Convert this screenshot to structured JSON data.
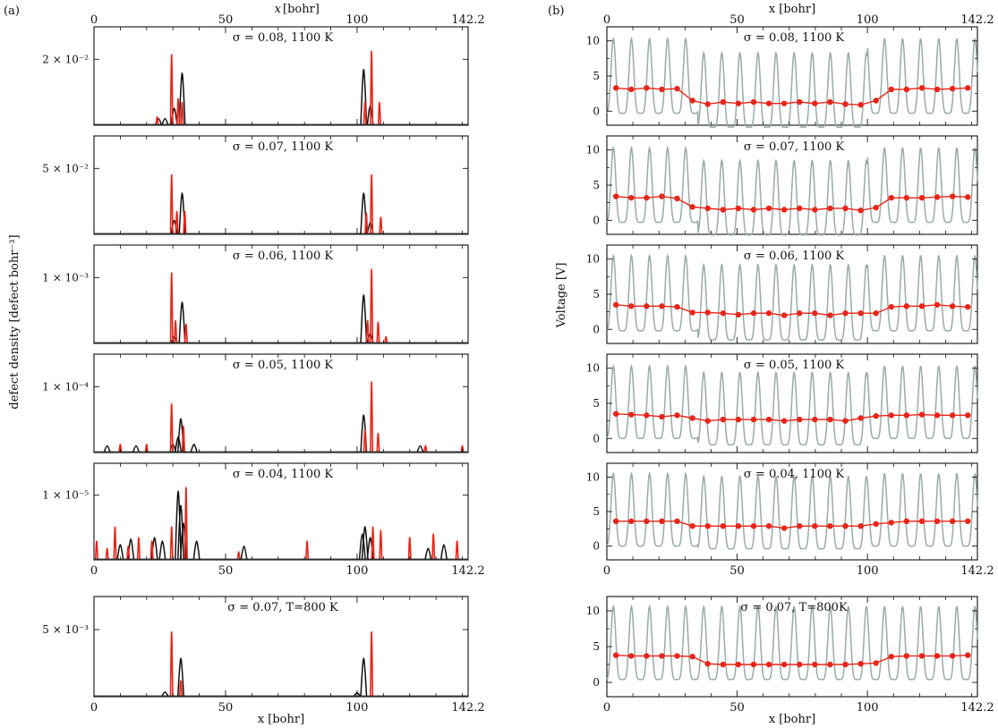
{
  "figure": {
    "left_tag": "(a)",
    "right_tag": "(b)",
    "left_ylabel": "defect density [defect bohr⁻³]",
    "right_ylabel": "Voltage [V]",
    "xlabel": "x [bohr]"
  },
  "chart_data": [
    {
      "type": "line",
      "panel": "a",
      "xlim": [
        0,
        142.2
      ],
      "x_ticks": [
        "0",
        "50",
        "100",
        "142.2"
      ],
      "colors": {
        "series1": "#e8251a",
        "series2": "#111111"
      },
      "rows": [
        {
          "title": "σ = 0.08, 1100 K",
          "ytick": "2 × 10⁻²",
          "peaks": {
            "series1": [
              [
                29.5,
                0.95
              ],
              [
                32,
                0.35
              ],
              [
                33.5,
                0.3
              ],
              [
                105.5,
                1.0
              ],
              [
                103,
                0.3
              ],
              [
                108.5,
                0.3
              ],
              [
                24,
                0.1
              ]
            ],
            "series2": [
              [
                33.5,
                0.7
              ],
              [
                30.5,
                0.22
              ],
              [
                27,
                0.08
              ],
              [
                102.5,
                0.75
              ],
              [
                105,
                0.25
              ],
              [
                24.5,
                0.08
              ]
            ]
          }
        },
        {
          "title": "σ = 0.07, 1100 K",
          "ytick": "5 × 10⁻²",
          "peaks": {
            "series1": [
              [
                29.5,
                0.8
              ],
              [
                31.5,
                0.3
              ],
              [
                34.5,
                0.3
              ],
              [
                105.5,
                0.8
              ],
              [
                103.5,
                0.28
              ],
              [
                109,
                0.22
              ]
            ],
            "series2": [
              [
                33.5,
                0.55
              ],
              [
                102.5,
                0.55
              ],
              [
                30.5,
                0.18
              ],
              [
                105,
                0.15
              ]
            ]
          }
        },
        {
          "title": "σ = 0.06, 1100 K",
          "ytick": "1 × 10⁻³",
          "peaks": {
            "series1": [
              [
                29.5,
                0.95
              ],
              [
                31,
                0.3
              ],
              [
                35,
                0.25
              ],
              [
                105.5,
                1.0
              ],
              [
                104,
                0.3
              ],
              [
                108,
                0.28
              ],
              [
                111,
                0.08
              ]
            ],
            "series2": [
              [
                33.5,
                0.55
              ],
              [
                102.5,
                0.65
              ],
              [
                30.5,
                0.08
              ],
              [
                105,
                0.12
              ]
            ]
          }
        },
        {
          "title": "σ = 0.05, 1100 K",
          "ytick": "1 × 10⁻⁴",
          "peaks": {
            "series1": [
              [
                29.5,
                0.65
              ],
              [
                34,
                0.35
              ],
              [
                105.5,
                0.95
              ],
              [
                103,
                0.3
              ],
              [
                108,
                0.25
              ],
              [
                20,
                0.1
              ],
              [
                10,
                0.1
              ],
              [
                126,
                0.08
              ],
              [
                140,
                0.08
              ]
            ],
            "series2": [
              [
                33,
                0.45
              ],
              [
                102.5,
                0.5
              ],
              [
                32,
                0.2
              ],
              [
                30,
                0.1
              ],
              [
                5,
                0.08
              ],
              [
                16,
                0.08
              ],
              [
                38,
                0.1
              ],
              [
                124,
                0.08
              ]
            ]
          }
        },
        {
          "title": "σ = 0.04, 1100 K",
          "ytick": "1 × 10⁻⁵",
          "peaks": {
            "series1": [
              [
                35,
                1.0
              ],
              [
                29.5,
                0.45
              ],
              [
                8,
                0.45
              ],
              [
                106,
                0.45
              ],
              [
                109,
                0.4
              ],
              [
                1,
                0.25
              ],
              [
                17,
                0.3
              ],
              [
                22,
                0.25
              ],
              [
                81,
                0.25
              ],
              [
                120,
                0.3
              ],
              [
                129,
                0.35
              ],
              [
                138,
                0.25
              ],
              [
                5,
                0.15
              ],
              [
                55,
                0.1
              ],
              [
                13,
                0.18
              ]
            ],
            "series2": [
              [
                32,
                0.95
              ],
              [
                33,
                0.75
              ],
              [
                34,
                0.5
              ],
              [
                26,
                0.25
              ],
              [
                23,
                0.3
              ],
              [
                10,
                0.2
              ],
              [
                14,
                0.28
              ],
              [
                39,
                0.25
              ],
              [
                57,
                0.18
              ],
              [
                103,
                0.45
              ],
              [
                102,
                0.35
              ],
              [
                105,
                0.3
              ],
              [
                133,
                0.2
              ],
              [
                127,
                0.15
              ]
            ]
          }
        },
        {
          "title": "σ = 0.07, T=800 K",
          "ytick": "5 × 10⁻³",
          "peaks": {
            "series1": [
              [
                29.5,
                0.85
              ],
              [
                105.5,
                0.85
              ],
              [
                33,
                0.2
              ]
            ],
            "series2": [
              [
                33,
                0.5
              ],
              [
                102.5,
                0.5
              ],
              [
                27,
                0.05
              ],
              [
                100,
                0.04
              ]
            ]
          }
        }
      ]
    },
    {
      "type": "line",
      "panel": "b",
      "xlim": [
        0,
        142.2
      ],
      "ylim": [
        -2,
        12
      ],
      "y_ticks": [
        "0",
        "5",
        "10"
      ],
      "x_ticks": [
        "0",
        "50",
        "100",
        "142.2"
      ],
      "colors": {
        "potential": "#9aaba5",
        "average": "#e8251a"
      },
      "rows": [
        {
          "title": "σ = 0.08, 1100 K",
          "pot_low": -0.3,
          "pot_high": 10.3,
          "pot_center_shift": -2.0,
          "points": [
            3.3,
            3.1,
            3.3,
            3.1,
            3.2,
            1.5,
            1.0,
            1.3,
            1.1,
            1.3,
            1.1,
            1.1,
            1.3,
            1.1,
            1.3,
            1.0,
            0.9,
            1.5,
            3.1,
            3.1,
            3.3,
            3.1,
            3.2,
            3.3
          ]
        },
        {
          "title": "σ = 0.07, 1100 K",
          "pot_low": -0.3,
          "pot_high": 10.3,
          "pot_center_shift": -1.8,
          "points": [
            3.4,
            3.2,
            3.2,
            3.4,
            3.1,
            1.9,
            1.7,
            1.5,
            1.7,
            1.5,
            1.7,
            1.5,
            1.7,
            1.5,
            1.7,
            1.7,
            1.4,
            1.8,
            3.2,
            3.2,
            3.2,
            3.3,
            3.4,
            3.3
          ]
        },
        {
          "title": "σ = 0.06, 1100 K",
          "pot_low": -0.2,
          "pot_high": 10.5,
          "pot_center_shift": -1.3,
          "points": [
            3.5,
            3.3,
            3.3,
            3.3,
            3.2,
            2.4,
            2.4,
            2.3,
            2.1,
            2.3,
            2.3,
            2.0,
            2.3,
            2.3,
            2.0,
            2.3,
            2.3,
            2.3,
            3.2,
            3.3,
            3.3,
            3.5,
            3.3,
            3.2
          ]
        },
        {
          "title": "σ = 0.05, 1100 K",
          "pot_low": 0.0,
          "pot_high": 10.3,
          "pot_center_shift": -0.9,
          "points": [
            3.5,
            3.4,
            3.3,
            3.1,
            3.3,
            2.9,
            2.5,
            2.7,
            2.7,
            2.7,
            2.7,
            2.5,
            2.7,
            2.7,
            2.7,
            2.5,
            2.9,
            3.2,
            3.3,
            3.3,
            3.4,
            3.3,
            3.3,
            3.3
          ]
        },
        {
          "title": "σ = 0.04, 1100 K",
          "pot_low": 0.0,
          "pot_high": 10.5,
          "pot_center_shift": -0.4,
          "points": [
            3.6,
            3.6,
            3.6,
            3.6,
            3.6,
            2.9,
            2.9,
            2.9,
            2.9,
            2.9,
            2.9,
            2.6,
            2.9,
            2.9,
            2.9,
            2.9,
            2.9,
            3.2,
            3.4,
            3.6,
            3.6,
            3.6,
            3.6,
            3.6
          ]
        },
        {
          "title": "σ = 0.07, T=800K",
          "pot_low": 0.4,
          "pot_high": 10.6,
          "pot_center_shift": 0.0,
          "points": [
            3.8,
            3.7,
            3.7,
            3.7,
            3.7,
            3.6,
            2.6,
            2.5,
            2.5,
            2.5,
            2.5,
            2.5,
            2.5,
            2.5,
            2.5,
            2.5,
            2.6,
            2.7,
            3.6,
            3.7,
            3.7,
            3.7,
            3.7,
            3.8
          ]
        }
      ]
    }
  ]
}
